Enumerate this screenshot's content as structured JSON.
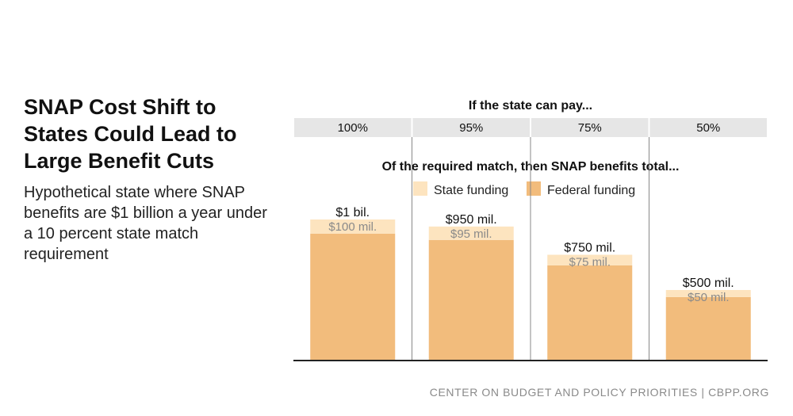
{
  "title": "SNAP Cost Shift to States Could Lead to Large Benefit Cuts",
  "subtitle": "Hypothetical state where SNAP benefits are $1 billion a year under a 10 percent state match requirement",
  "footer": "CENTER ON BUDGET AND POLICY PRIORITIES | CBPP.ORG",
  "colors": {
    "state": "#fde4bf",
    "federal": "#f2bc7c",
    "header_bg": "#e6e6e6",
    "axis": "#222222",
    "divider": "#888888",
    "state_label": "#8a8a8a"
  },
  "chart_data": {
    "type": "bar",
    "stacked": true,
    "header_title": "If the state can pay...",
    "subheader": "Of the required match, then SNAP benefits total...",
    "categories": [
      "100%",
      "95%",
      "75%",
      "50%"
    ],
    "series": [
      {
        "name": "Federal funding",
        "values": [
          900,
          855,
          675,
          450
        ]
      },
      {
        "name": "State funding",
        "values": [
          100,
          95,
          75,
          50
        ]
      }
    ],
    "total_labels": [
      "$1 bil.",
      "$950 mil.",
      "$750 mil.",
      "$500 mil."
    ],
    "state_labels": [
      "$100 mil.",
      "$95 mil.",
      "$75 mil.",
      "$50 mil."
    ],
    "legend": [
      "State funding",
      "Federal funding"
    ],
    "units": "$ millions",
    "ylim": [
      0,
      1000
    ]
  }
}
